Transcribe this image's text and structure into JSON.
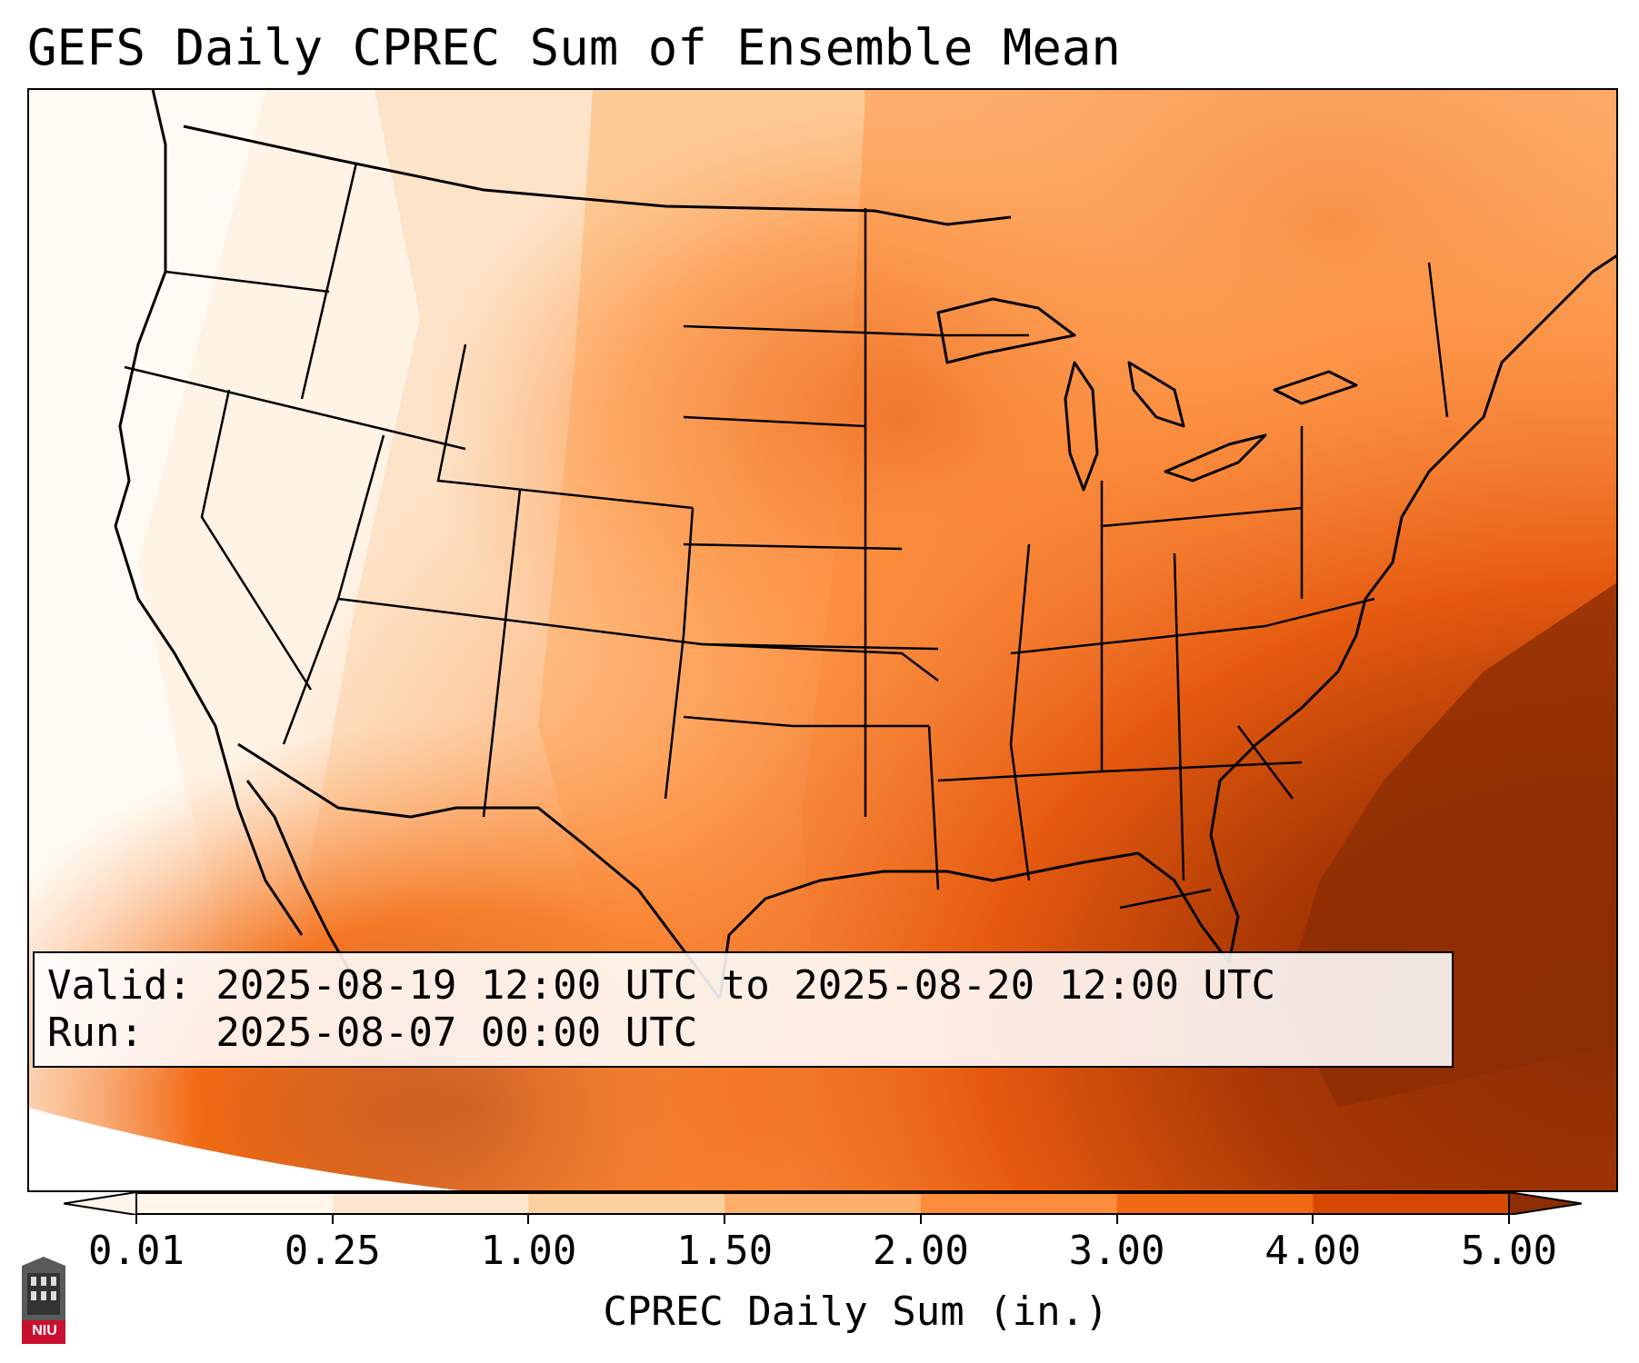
{
  "title": "GEFS Daily CPREC Sum of Ensemble Mean",
  "info": {
    "valid_line": "Valid: 2025-08-19 12:00 UTC to 2025-08-20 12:00 UTC",
    "run_line": "Run:   2025-08-07 00:00 UTC"
  },
  "colorbar": {
    "label": "CPREC Daily Sum (in.)",
    "ticks": [
      "0.01",
      "0.25",
      "1.00",
      "1.50",
      "2.00",
      "3.00",
      "4.00",
      "5.00"
    ],
    "colors": [
      "#fff5eb",
      "#fee6ce",
      "#fdd0a2",
      "#fdae6b",
      "#fd8d3c",
      "#f16913",
      "#d94801",
      "#8c2d04"
    ]
  },
  "logo": {
    "text": "NIU",
    "icon": "university-tower-icon",
    "color": "#c8102e"
  }
}
